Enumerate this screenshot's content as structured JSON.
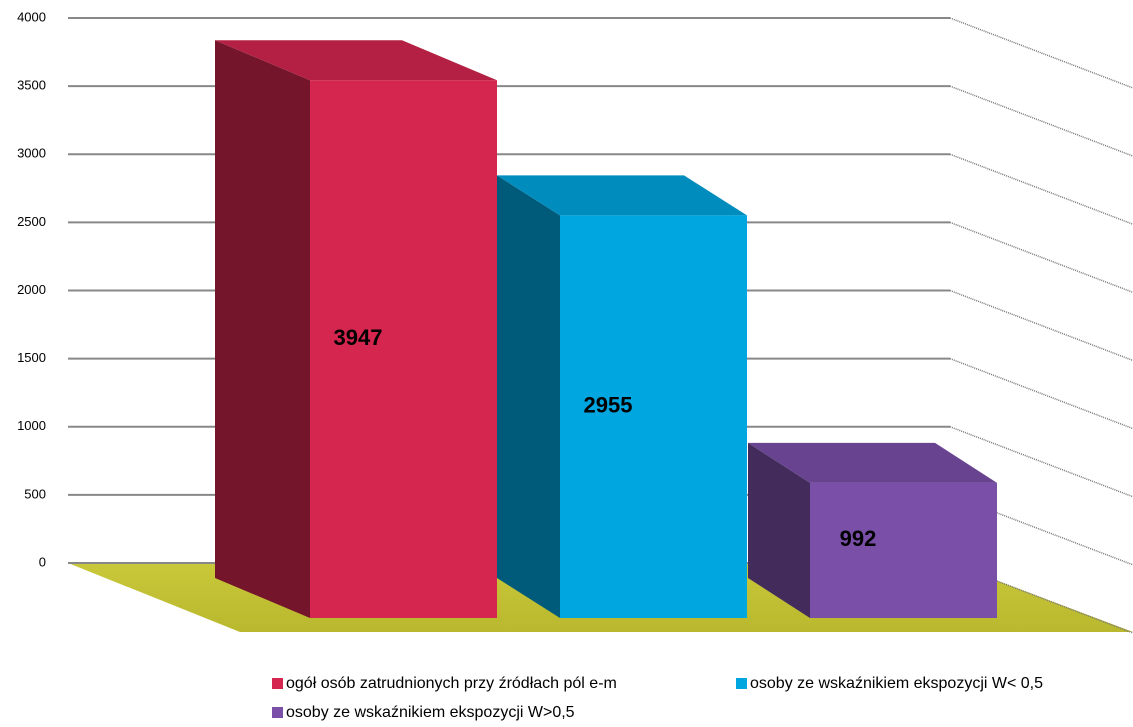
{
  "chart_data": {
    "type": "bar3d",
    "series": [
      {
        "name": "ogół osób zatrudnionych przy źródłach pól e-m",
        "color": "#d4264f",
        "values": [
          3947
        ]
      },
      {
        "name": "osoby ze wskaźnikiem ekspozycji W< 0,5",
        "color": "#00a6e0",
        "values": [
          2955
        ]
      },
      {
        "name": "osoby ze wskaźnikiem ekspozycji W>0,5",
        "color": "#7a4fa8",
        "values": [
          992
        ]
      }
    ],
    "ylim": [
      0,
      4000
    ],
    "yticks": [
      0,
      500,
      1000,
      1500,
      2000,
      2500,
      3000,
      3500,
      4000
    ],
    "grid": true
  }
}
